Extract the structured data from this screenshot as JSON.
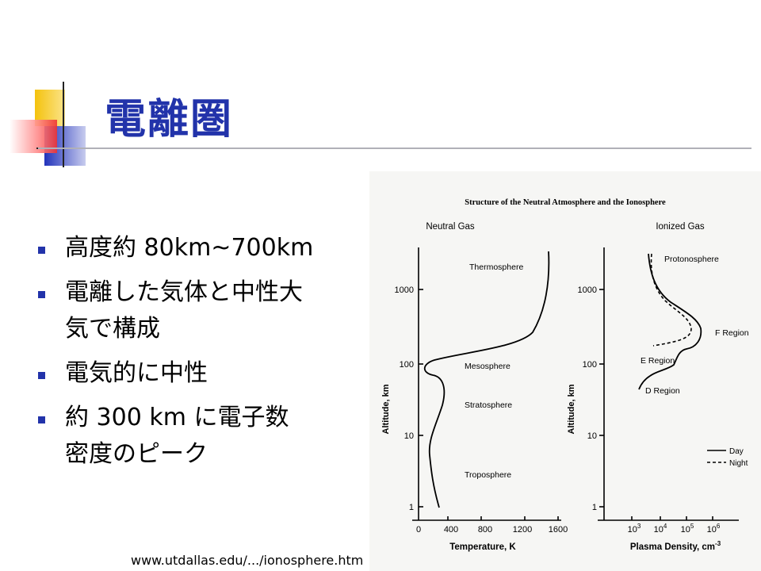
{
  "title": "電離圏",
  "bullets": [
    {
      "lines": [
        "高度約 80km~700km"
      ]
    },
    {
      "lines": [
        "電離した気体と中性大",
        "気で構成"
      ]
    },
    {
      "lines": [
        "電気的に中性"
      ]
    },
    {
      "lines": [
        "約 300 km に電子数",
        "密度のピーク"
      ]
    }
  ],
  "source_text": "www.utdallas.edu/.../ionosphere.htm",
  "figure": {
    "title": "Structure of the Neutral Atmosphere and the Ionosphere",
    "left_panel": {
      "heading": "Neutral Gas",
      "y_label": "Altitude, km",
      "y_ticks": [
        "1000",
        "100",
        "10",
        "1"
      ],
      "x_label": "Temperature, K",
      "x_ticks": [
        "0",
        "400",
        "800",
        "1200",
        "1600"
      ],
      "layers": [
        "Thermosphere",
        "Mesosphere",
        "Stratosphere",
        "Troposphere"
      ]
    },
    "right_panel": {
      "heading": "Ionized Gas",
      "y_label": "Altitude, km",
      "y_ticks": [
        "1000",
        "100",
        "10",
        "1"
      ],
      "x_label": "Plasma Density, cm",
      "x_label_sup": "-3",
      "x_ticks": [
        {
          "base": "10",
          "exp": "3"
        },
        {
          "base": "10",
          "exp": "4"
        },
        {
          "base": "10",
          "exp": "5"
        },
        {
          "base": "10",
          "exp": "6"
        }
      ],
      "regions": [
        "Protonosphere",
        "F Region",
        "E Region",
        "D Region"
      ],
      "legend": [
        "Day",
        "Night"
      ]
    }
  },
  "colors": {
    "title": "#2233aa",
    "bullet": "#2233aa",
    "deco_yellow": "#f4c20d",
    "deco_blue": "#2233bb",
    "deco_red": "#ee3333"
  }
}
